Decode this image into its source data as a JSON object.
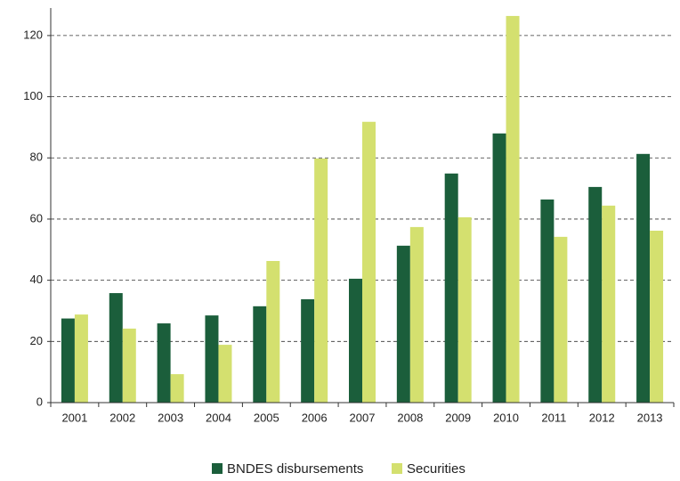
{
  "chart_data": {
    "type": "bar",
    "categories": [
      "2001",
      "2002",
      "2003",
      "2004",
      "2005",
      "2006",
      "2007",
      "2008",
      "2009",
      "2010",
      "2011",
      "2012",
      "2013"
    ],
    "series": [
      {
        "name": "BNDES disbursements",
        "color": "#1b5e3b",
        "values": [
          27.5,
          35.8,
          25.9,
          28.5,
          31.5,
          33.8,
          40.5,
          51.3,
          74.9,
          88,
          66.4,
          70.5,
          81.3
        ]
      },
      {
        "name": "Securities",
        "color": "#d4e06f",
        "values": [
          28.8,
          24.2,
          9.3,
          18.9,
          46.3,
          79.8,
          91.8,
          57.4,
          60.6,
          126.4,
          54.2,
          64.4,
          56.2
        ]
      }
    ],
    "ylim": [
      0,
      129
    ],
    "yticks": [
      0,
      20,
      40,
      60,
      80,
      100,
      120
    ],
    "grid": true,
    "legend": "bottom"
  }
}
